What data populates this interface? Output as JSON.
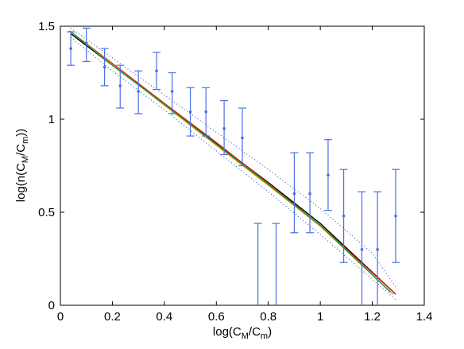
{
  "chart_data": {
    "type": "scatter",
    "xlabel": "log(C_M/C_m)",
    "ylabel": "log(n(C_M/C_m))",
    "xlim": [
      0,
      1.4
    ],
    "ylim": [
      0,
      1.5
    ],
    "xticks": [
      "0",
      "0.2",
      "0.4",
      "0.6",
      "0.8",
      "1",
      "1.2",
      "1.4"
    ],
    "yticks": [
      "0",
      "0.5",
      "1",
      "1.5"
    ],
    "grid": false,
    "series": [
      {
        "kind": "errorbar",
        "color": "#4a6fe3",
        "points": [
          {
            "x": 0.04,
            "y": 1.38,
            "lo": 1.29,
            "hi": 1.47
          },
          {
            "x": 0.1,
            "y": 1.41,
            "lo": 1.31,
            "hi": 1.49
          },
          {
            "x": 0.17,
            "y": 1.28,
            "lo": 1.18,
            "hi": 1.38
          },
          {
            "x": 0.23,
            "y": 1.18,
            "lo": 1.06,
            "hi": 1.29
          },
          {
            "x": 0.3,
            "y": 1.15,
            "lo": 1.03,
            "hi": 1.26
          },
          {
            "x": 0.37,
            "y": 1.26,
            "lo": 1.16,
            "hi": 1.36
          },
          {
            "x": 0.43,
            "y": 1.15,
            "lo": 1.03,
            "hi": 1.25
          },
          {
            "x": 0.5,
            "y": 1.04,
            "lo": 0.91,
            "hi": 1.17
          },
          {
            "x": 0.56,
            "y": 1.04,
            "lo": 0.91,
            "hi": 1.17
          },
          {
            "x": 0.63,
            "y": 0.95,
            "lo": 0.81,
            "hi": 1.1
          },
          {
            "x": 0.7,
            "y": 0.9,
            "lo": 0.75,
            "hi": 1.06
          },
          {
            "x": 0.76,
            "y": null,
            "lo": 0.0,
            "hi": 0.44
          },
          {
            "x": 0.83,
            "y": null,
            "lo": 0.0,
            "hi": 0.44
          },
          {
            "x": 0.9,
            "y": 0.6,
            "lo": 0.39,
            "hi": 0.82
          },
          {
            "x": 0.96,
            "y": 0.6,
            "lo": 0.39,
            "hi": 0.82
          },
          {
            "x": 1.03,
            "y": 0.7,
            "lo": 0.51,
            "hi": 0.89
          },
          {
            "x": 1.09,
            "y": 0.48,
            "lo": 0.23,
            "hi": 0.73
          },
          {
            "x": 1.16,
            "y": 0.3,
            "lo": 0.0,
            "hi": 0.61
          },
          {
            "x": 1.22,
            "y": 0.3,
            "lo": 0.0,
            "hi": 0.61
          },
          {
            "x": 1.29,
            "y": 0.48,
            "lo": 0.23,
            "hi": 0.73
          }
        ]
      },
      {
        "kind": "line",
        "color": "#000000",
        "x": [
          0.04,
          0.2,
          0.4,
          0.6,
          0.8,
          1.0,
          1.29
        ],
        "y": [
          1.46,
          1.29,
          1.08,
          0.87,
          0.66,
          0.44,
          0.06
        ]
      },
      {
        "kind": "line",
        "color": "#d91c1c",
        "x": [
          0.035,
          0.2,
          0.4,
          0.6,
          0.8,
          1.0,
          1.29
        ],
        "y": [
          1.475,
          1.3,
          1.085,
          0.875,
          0.655,
          0.43,
          0.06
        ]
      },
      {
        "kind": "line",
        "color": "#e5a000",
        "x": [
          0.04,
          0.2,
          0.4,
          0.6,
          0.8,
          1.0,
          1.28
        ],
        "y": [
          1.47,
          1.295,
          1.075,
          0.86,
          0.645,
          0.425,
          0.06
        ]
      },
      {
        "kind": "line",
        "color": "#1a9c3a",
        "x": [
          0.045,
          0.2,
          0.4,
          0.6,
          0.8,
          1.0,
          1.27
        ],
        "y": [
          1.465,
          1.29,
          1.08,
          0.865,
          0.65,
          0.43,
          0.07
        ]
      },
      {
        "kind": "line",
        "color": "#1f3fbf",
        "dash": true,
        "x": [
          0.04,
          0.2,
          0.4,
          0.6,
          0.8,
          1.0,
          1.2,
          1.29
        ],
        "y": [
          1.49,
          1.33,
          1.13,
          0.93,
          0.73,
          0.52,
          0.28,
          0.1
        ]
      },
      {
        "kind": "line",
        "color": "#1f3fbf",
        "dash": true,
        "x": [
          0.04,
          0.2,
          0.4,
          0.6,
          0.8,
          1.0,
          1.2,
          1.29
        ],
        "y": [
          1.44,
          1.26,
          1.05,
          0.83,
          0.61,
          0.38,
          0.14,
          0.03
        ]
      }
    ]
  }
}
